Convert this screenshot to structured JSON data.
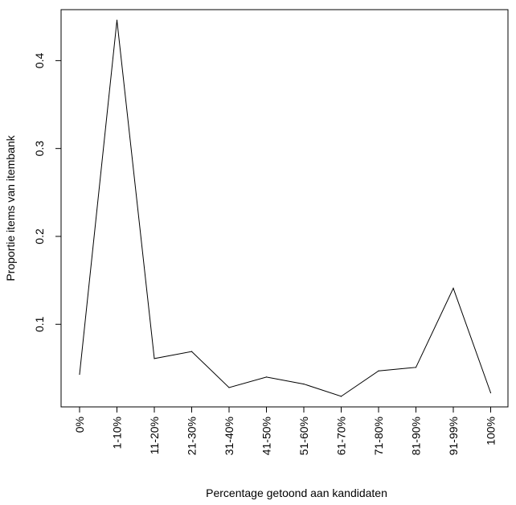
{
  "chart_data": {
    "type": "line",
    "title": "",
    "xlabel": "Percentage getoond aan kandidaten",
    "ylabel": "Proportie items van itembank",
    "categories": [
      "0%",
      "1-10%",
      "11-20%",
      "21-30%",
      "31-40%",
      "41-50%",
      "51-60%",
      "61-70%",
      "71-80%",
      "81-90%",
      "91-99%",
      "100%"
    ],
    "series": [
      {
        "values": [
          0.043,
          0.446,
          0.061,
          0.069,
          0.028,
          0.04,
          0.032,
          0.018,
          0.047,
          0.051,
          0.141,
          0.022
        ]
      }
    ],
    "yticks": [
      0.1,
      0.2,
      0.3,
      0.4
    ],
    "ytick_labels": [
      "0.1",
      "0.2",
      "0.3",
      "0.4"
    ],
    "ylim": [
      0.006,
      0.458
    ],
    "grid": false,
    "line_color": "#000000"
  }
}
